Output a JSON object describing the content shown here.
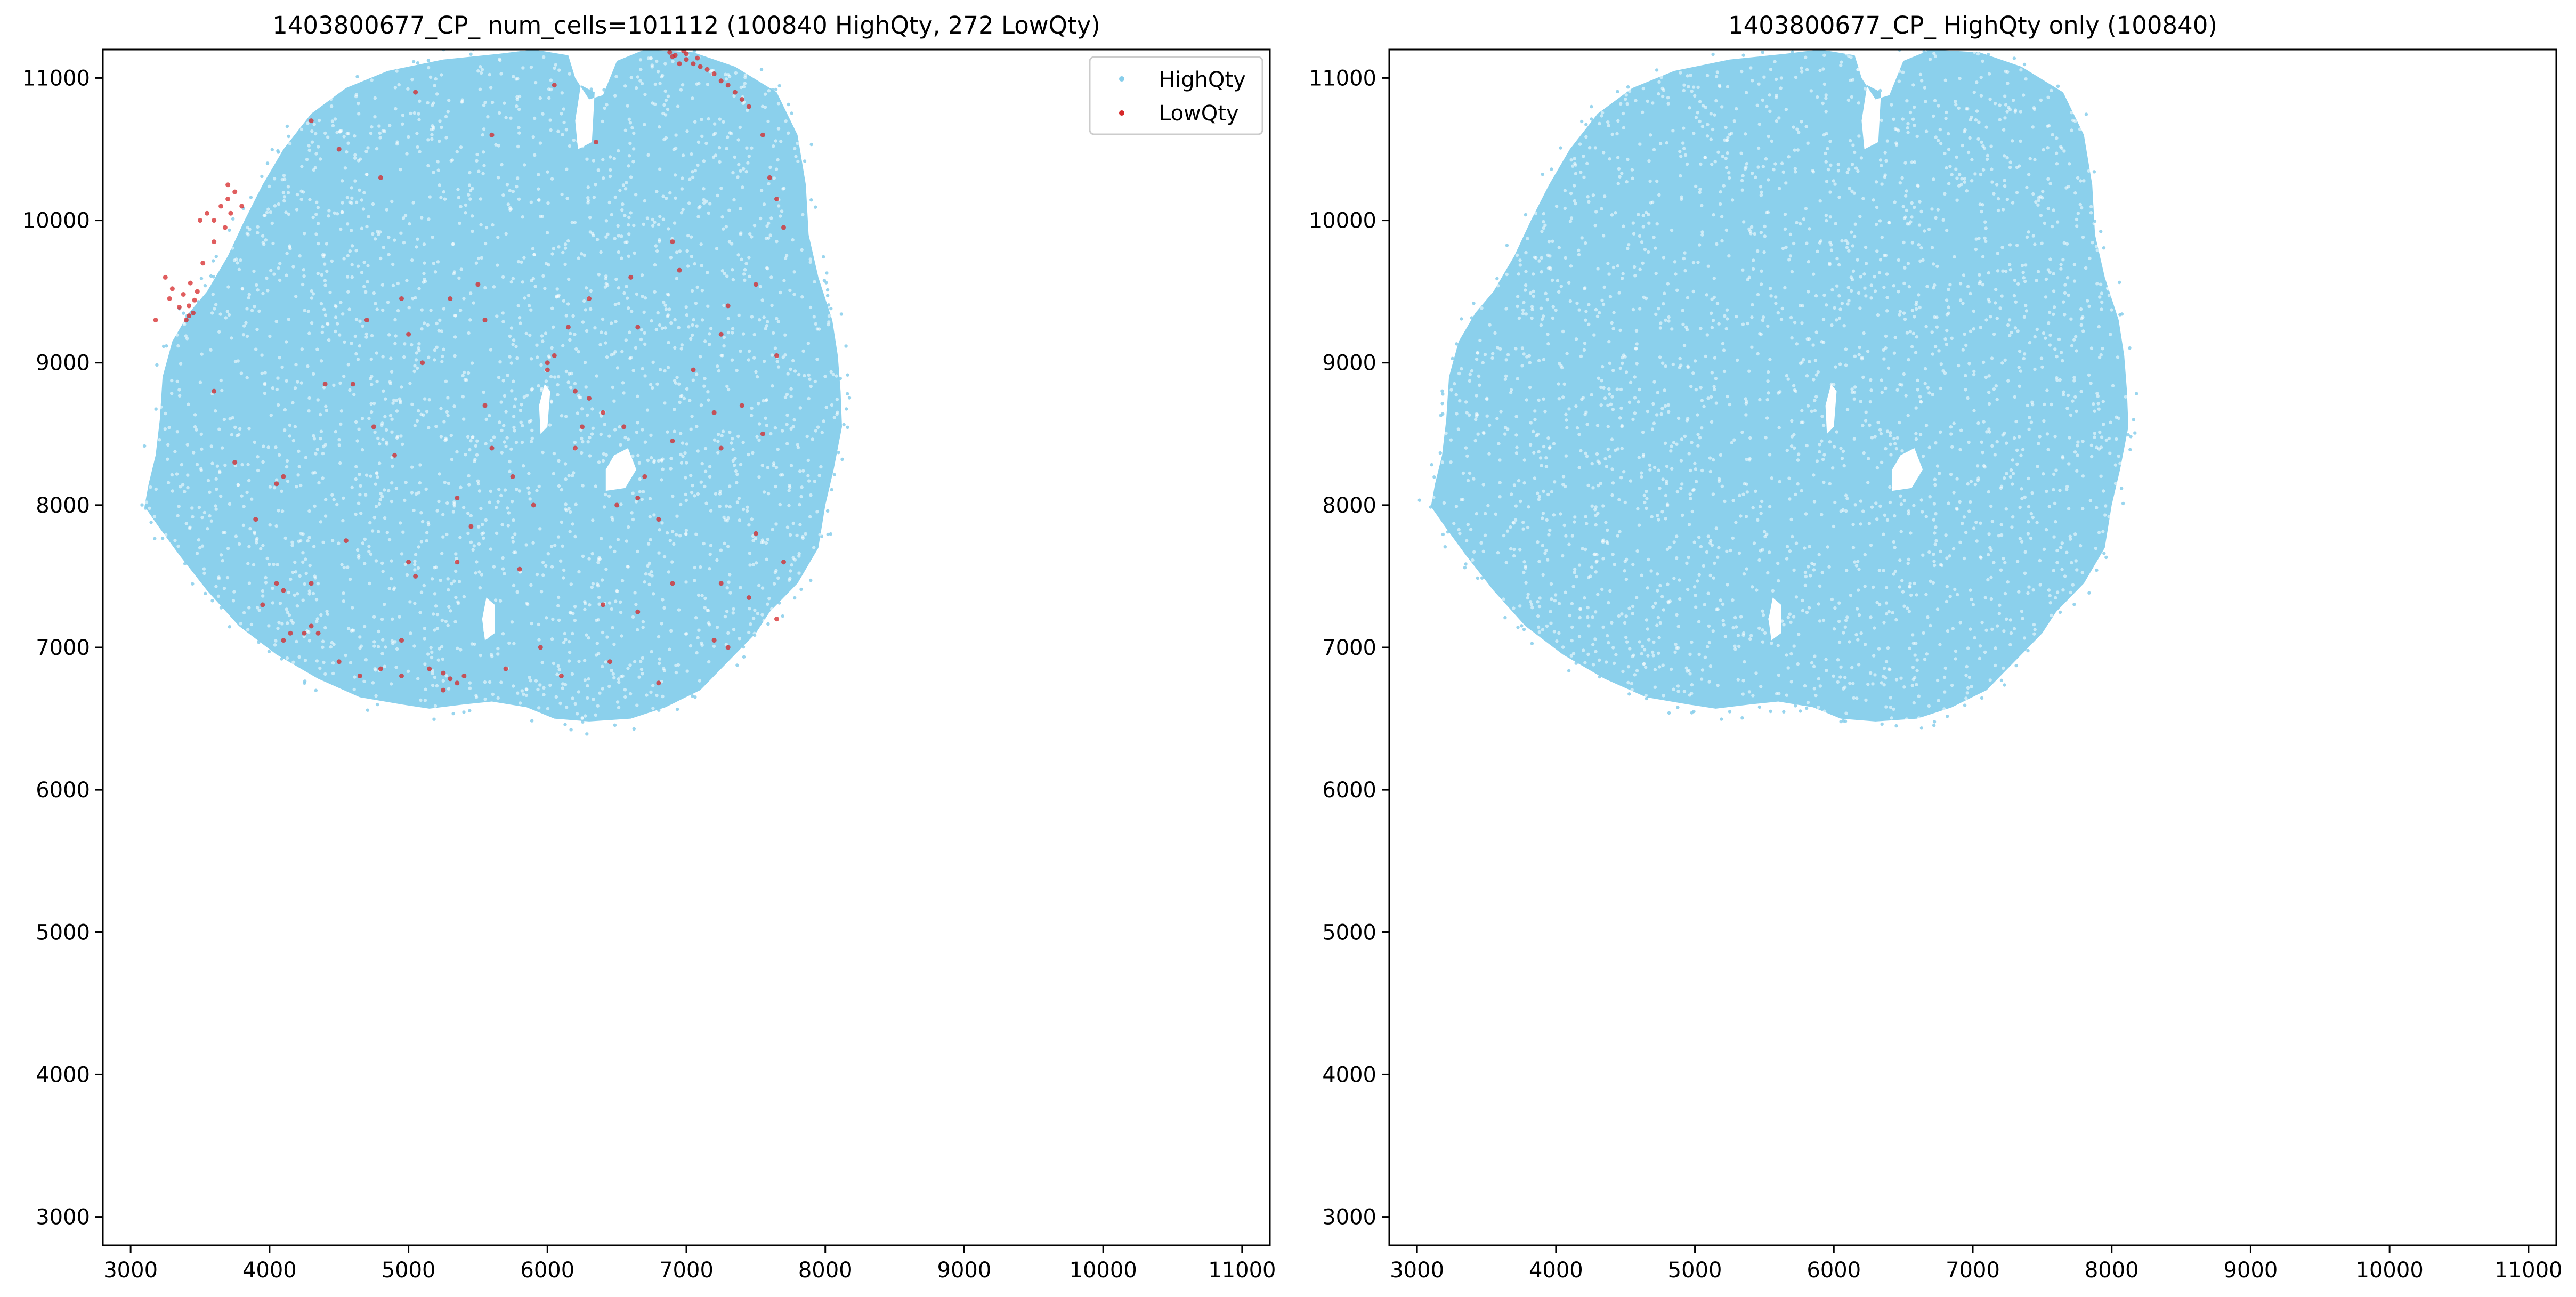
{
  "chart_data": [
    {
      "type": "scatter",
      "title": "1403800677_CP_ num_cells=101112 (100840 HighQty, 272 LowQty)",
      "xlabel": "",
      "ylabel": "",
      "xlim": [
        2800,
        11200
      ],
      "ylim": [
        2800,
        11200
      ],
      "xticks": [
        3000,
        4000,
        5000,
        6000,
        7000,
        8000,
        9000,
        10000,
        11000
      ],
      "yticks": [
        3000,
        4000,
        5000,
        6000,
        7000,
        8000,
        9000,
        10000,
        11000
      ],
      "grid": false,
      "legend": {
        "position": "top-right",
        "entries": [
          "HighQty",
          "LowQty"
        ]
      },
      "series": [
        {
          "name": "HighQty",
          "color": "#87ceeb",
          "count": 100840,
          "region_center": [
            5760,
            8910
          ],
          "region_extent_x": [
            3060,
            8150
          ],
          "region_extent_y": [
            6480,
            11200
          ]
        },
        {
          "name": "LowQty",
          "color": "#d62728",
          "count": 272,
          "points": [
            [
              3250,
              9600
            ],
            [
              3300,
              9520
            ],
            [
              3380,
              9480
            ],
            [
              3420,
              9400
            ],
            [
              3450,
              9350
            ],
            [
              3400,
              9300
            ],
            [
              3430,
              9560
            ],
            [
              3460,
              9440
            ],
            [
              3350,
              9390
            ],
            [
              3280,
              9450
            ],
            [
              3420,
              9330
            ],
            [
              3480,
              9500
            ],
            [
              3520,
              9700
            ],
            [
              3600,
              10000
            ],
            [
              3650,
              10100
            ],
            [
              3700,
              10150
            ],
            [
              3550,
              10050
            ],
            [
              3750,
              10200
            ],
            [
              3680,
              9950
            ],
            [
              3800,
              10100
            ],
            [
              3700,
              10250
            ],
            [
              3600,
              9850
            ],
            [
              3500,
              10000
            ],
            [
              3720,
              10050
            ],
            [
              4500,
              10500
            ],
            [
              4300,
              10700
            ],
            [
              4800,
              10300
            ],
            [
              5050,
              10900
            ],
            [
              5600,
              10600
            ],
            [
              6050,
              10950
            ],
            [
              6350,
              10550
            ],
            [
              6900,
              11150
            ],
            [
              6950,
              11100
            ],
            [
              7000,
              11130
            ],
            [
              7050,
              11100
            ],
            [
              7100,
              11080
            ],
            [
              7200,
              11030
            ],
            [
              7250,
              10980
            ],
            [
              7300,
              10950
            ],
            [
              7400,
              10850
            ],
            [
              6880,
              11180
            ],
            [
              6920,
              11160
            ],
            [
              7000,
              11170
            ],
            [
              7080,
              11140
            ],
            [
              7150,
              11060
            ],
            [
              7350,
              10900
            ],
            [
              7450,
              10800
            ],
            [
              6980,
              11190
            ],
            [
              7550,
              10600
            ],
            [
              7600,
              10300
            ],
            [
              7650,
              10150
            ],
            [
              7700,
              9950
            ],
            [
              7500,
              9550
            ],
            [
              7300,
              9400
            ],
            [
              6900,
              9850
            ],
            [
              6950,
              9650
            ],
            [
              6600,
              9600
            ],
            [
              6300,
              9450
            ],
            [
              6150,
              9250
            ],
            [
              5500,
              9550
            ],
            [
              5300,
              9450
            ],
            [
              5000,
              9200
            ],
            [
              4700,
              9300
            ],
            [
              5100,
              9000
            ],
            [
              4400,
              8850
            ],
            [
              4600,
              8850
            ],
            [
              6000,
              9000
            ],
            [
              6000,
              8950
            ],
            [
              6050,
              9050
            ],
            [
              6200,
              8800
            ],
            [
              6300,
              8750
            ],
            [
              6250,
              8550
            ],
            [
              6200,
              8400
            ],
            [
              6400,
              8650
            ],
            [
              6550,
              8550
            ],
            [
              6700,
              8200
            ],
            [
              6900,
              8450
            ],
            [
              7050,
              8950
            ],
            [
              7200,
              8650
            ],
            [
              7250,
              8400
            ],
            [
              7400,
              8700
            ],
            [
              7550,
              8500
            ],
            [
              6650,
              8050
            ],
            [
              6500,
              8000
            ],
            [
              6800,
              7900
            ],
            [
              5900,
              8000
            ],
            [
              5750,
              8200
            ],
            [
              5600,
              8400
            ],
            [
              5350,
              8050
            ],
            [
              4900,
              8350
            ],
            [
              4750,
              8550
            ],
            [
              4100,
              8200
            ],
            [
              4050,
              8150
            ],
            [
              4550,
              7750
            ],
            [
              5000,
              7600
            ],
            [
              5050,
              7500
            ],
            [
              5350,
              7600
            ],
            [
              5450,
              7850
            ],
            [
              5800,
              7550
            ],
            [
              6400,
              7300
            ],
            [
              6650,
              7250
            ],
            [
              6900,
              7450
            ],
            [
              7200,
              7050
            ],
            [
              7250,
              7450
            ],
            [
              7450,
              7350
            ],
            [
              7700,
              7600
            ],
            [
              7500,
              7800
            ],
            [
              4050,
              7450
            ],
            [
              4100,
              7400
            ],
            [
              4300,
              7450
            ],
            [
              3950,
              7300
            ],
            [
              4150,
              7100
            ],
            [
              4250,
              7100
            ],
            [
              4100,
              7050
            ],
            [
              4300,
              7150
            ],
            [
              4350,
              7100
            ],
            [
              4500,
              6900
            ],
            [
              4650,
              6800
            ],
            [
              4800,
              6850
            ],
            [
              4950,
              6800
            ],
            [
              5150,
              6850
            ],
            [
              5250,
              6820
            ],
            [
              5350,
              6750
            ],
            [
              5400,
              6800
            ],
            [
              5300,
              6780
            ],
            [
              5250,
              6700
            ],
            [
              5700,
              6850
            ],
            [
              5950,
              7000
            ],
            [
              6450,
              6900
            ],
            [
              6800,
              6750
            ],
            [
              7300,
              7000
            ],
            [
              7650,
              7200
            ],
            [
              3180,
              9300
            ],
            [
              4950,
              9450
            ],
            [
              5550,
              9300
            ],
            [
              6650,
              9250
            ],
            [
              7250,
              9200
            ],
            [
              7650,
              9050
            ],
            [
              3600,
              8800
            ],
            [
              3750,
              8300
            ],
            [
              3900,
              7900
            ],
            [
              4950,
              7050
            ],
            [
              6100,
              6800
            ],
            [
              5550,
              8700
            ]
          ]
        }
      ]
    },
    {
      "type": "scatter",
      "title": "1403800677_CP_ HighQty only (100840)",
      "xlabel": "",
      "ylabel": "",
      "xlim": [
        2800,
        11200
      ],
      "ylim": [
        2800,
        11200
      ],
      "xticks": [
        3000,
        4000,
        5000,
        6000,
        7000,
        8000,
        9000,
        10000,
        11000
      ],
      "yticks": [
        3000,
        4000,
        5000,
        6000,
        7000,
        8000,
        9000,
        10000,
        11000
      ],
      "grid": false,
      "series": [
        {
          "name": "HighQty",
          "color": "#87ceeb",
          "count": 100840,
          "region_center": [
            5760,
            8910
          ],
          "region_extent_x": [
            3060,
            8150
          ],
          "region_extent_y": [
            6480,
            11200
          ]
        }
      ]
    }
  ]
}
